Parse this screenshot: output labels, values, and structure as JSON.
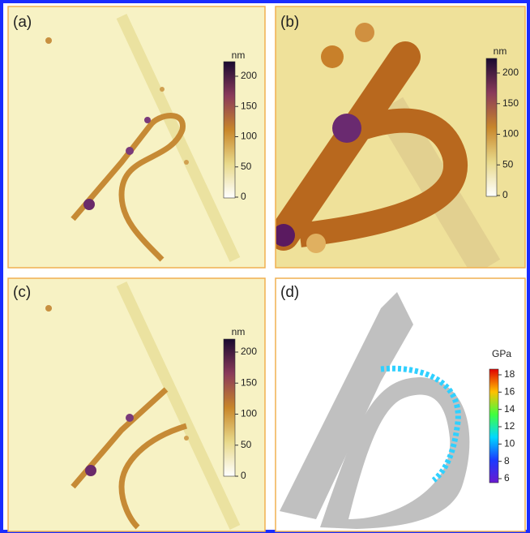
{
  "panels": [
    {
      "label": "(a)",
      "colorbar": {
        "unit": "nm",
        "ticks": [
          0,
          50,
          100,
          150,
          200
        ]
      }
    },
    {
      "label": "(b)",
      "colorbar": {
        "unit": "nm",
        "ticks": [
          0,
          50,
          100,
          150,
          200
        ]
      }
    },
    {
      "label": "(c)",
      "colorbar": {
        "unit": "nm",
        "ticks": [
          0,
          50,
          100,
          150,
          200
        ]
      }
    },
    {
      "label": "(d)",
      "colorbar": {
        "unit": "GPa",
        "ticks": [
          6,
          8,
          10,
          12,
          14,
          16,
          18
        ]
      }
    }
  ]
}
